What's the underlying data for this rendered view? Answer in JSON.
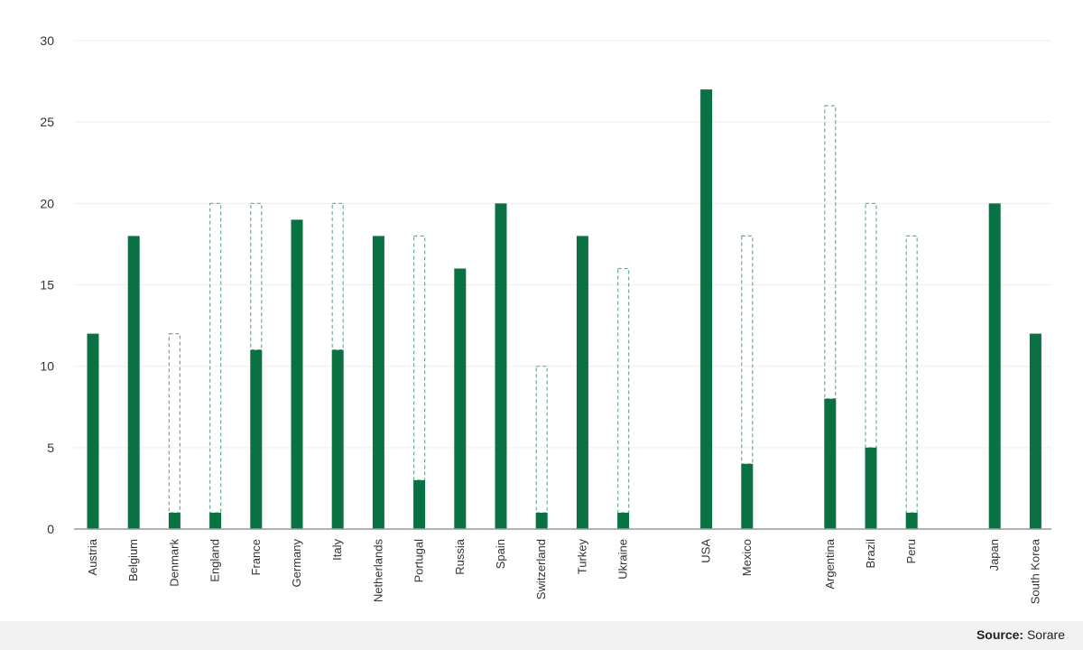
{
  "chart_data": {
    "type": "bar",
    "categories": [
      "Austria",
      "Belgium",
      "Denmark",
      "England",
      "France",
      "Germany",
      "Italy",
      "Netherlands",
      "Portugal",
      "Russia",
      "Spain",
      "Switzerland",
      "Turkey",
      "Ukraine",
      "USA",
      "Mexico",
      "Argentina",
      "Brazil",
      "Peru",
      "Japan",
      "South Korea"
    ],
    "groups": [
      14,
      2,
      3,
      2
    ],
    "series": [
      {
        "values": [
          12,
          18,
          1,
          1,
          11,
          19,
          11,
          18,
          3,
          16,
          20,
          1,
          18,
          1,
          27,
          4,
          8,
          5,
          1,
          20,
          12
        ]
      },
      {
        "values": [
          null,
          null,
          12,
          20,
          20,
          null,
          20,
          null,
          18,
          null,
          null,
          10,
          null,
          16,
          null,
          18,
          26,
          20,
          18,
          null,
          null
        ]
      }
    ],
    "ylim": [
      0,
      30
    ],
    "yticks": [
      0,
      5,
      10,
      15,
      20,
      25,
      30
    ],
    "grid": true,
    "title": "",
    "xlabel": "",
    "ylabel": ""
  },
  "colors": {
    "bar": "#0a7143",
    "outline": "#6ab08f",
    "grid": "#eeeeee",
    "axis": "#9a9a9a"
  },
  "footer": {
    "source_label": "Source:",
    "source_value": " Sorare"
  }
}
